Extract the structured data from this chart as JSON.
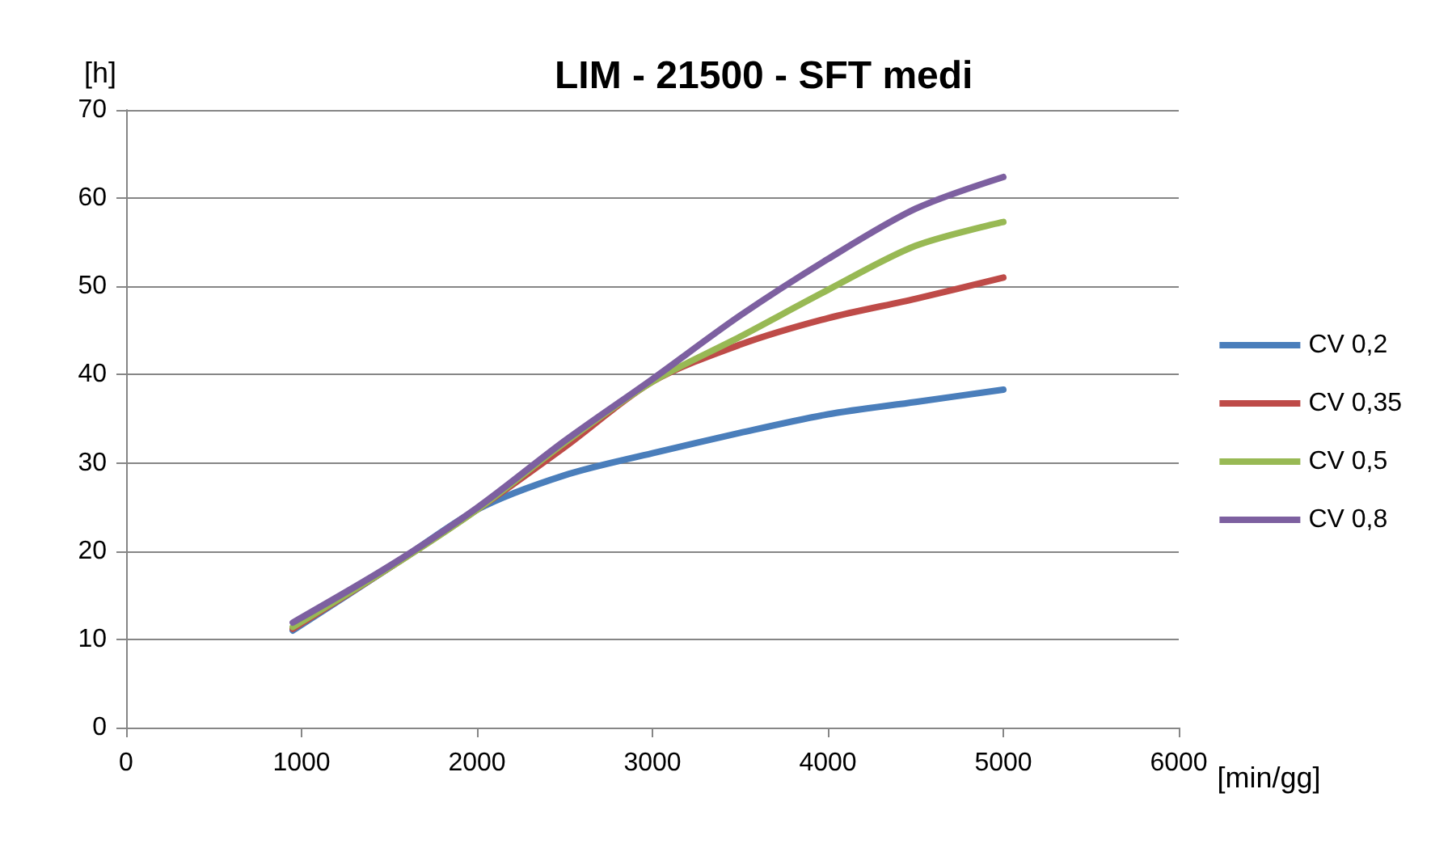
{
  "chart_data": {
    "type": "line",
    "title": "LIM - 21500 - SFT medi",
    "xlabel": "[min/gg]",
    "ylabel": "[h]",
    "x": [
      950,
      1500,
      2000,
      2500,
      3000,
      3500,
      4000,
      4500,
      5000
    ],
    "series": [
      {
        "name": "CV 0,2",
        "color": "#4a7ebb",
        "values": [
          11.0,
          18.1,
          24.7,
          28.6,
          31.1,
          33.4,
          35.5,
          36.9,
          38.3
        ]
      },
      {
        "name": "CV 0,35",
        "color": "#be4b48",
        "values": [
          11.2,
          18.1,
          24.7,
          31.8,
          39.2,
          43.4,
          46.4,
          48.6,
          51.0
        ]
      },
      {
        "name": "CV 0,5",
        "color": "#98b954",
        "values": [
          11.4,
          18.1,
          24.7,
          32.3,
          39.2,
          44.3,
          49.6,
          54.6,
          57.3
        ]
      },
      {
        "name": "CV 0,8",
        "color": "#7d60a0",
        "values": [
          11.9,
          18.3,
          24.9,
          32.5,
          39.5,
          46.7,
          53.1,
          58.8,
          62.4
        ]
      }
    ],
    "xlim": [
      0,
      6000
    ],
    "xticks": [
      0,
      1000,
      2000,
      3000,
      4000,
      5000,
      6000
    ],
    "ylim": [
      0,
      70
    ],
    "yticks": [
      0,
      10,
      20,
      30,
      40,
      50,
      60,
      70
    ],
    "grid": "y",
    "legend": "right",
    "marker": "none",
    "line_style": "solid"
  }
}
